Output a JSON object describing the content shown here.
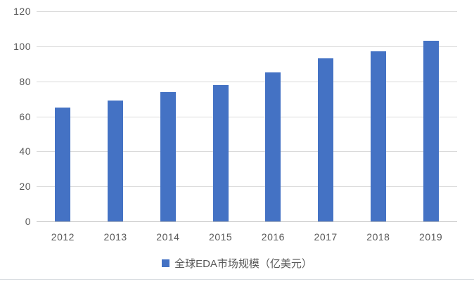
{
  "chart_data": {
    "type": "bar",
    "title": "",
    "categories": [
      "2012",
      "2013",
      "2014",
      "2015",
      "2016",
      "2017",
      "2018",
      "2019"
    ],
    "series": [
      {
        "name": "全球EDA市场规模（亿美元）",
        "values": [
          65,
          69,
          74,
          78,
          85,
          93,
          97,
          103
        ]
      }
    ],
    "xlabel": "",
    "ylabel": "",
    "ylim": [
      0,
      120
    ],
    "yticks": [
      0,
      20,
      40,
      60,
      80,
      100,
      120
    ],
    "grid": true,
    "legend_position": "bottom",
    "colors": {
      "bar": "#4472c4",
      "axis_text": "#595959",
      "gridline": "#dadada",
      "axis_line": "#bfbfbf",
      "background": "#ffffff",
      "frame_line": "#d9dde1"
    }
  }
}
